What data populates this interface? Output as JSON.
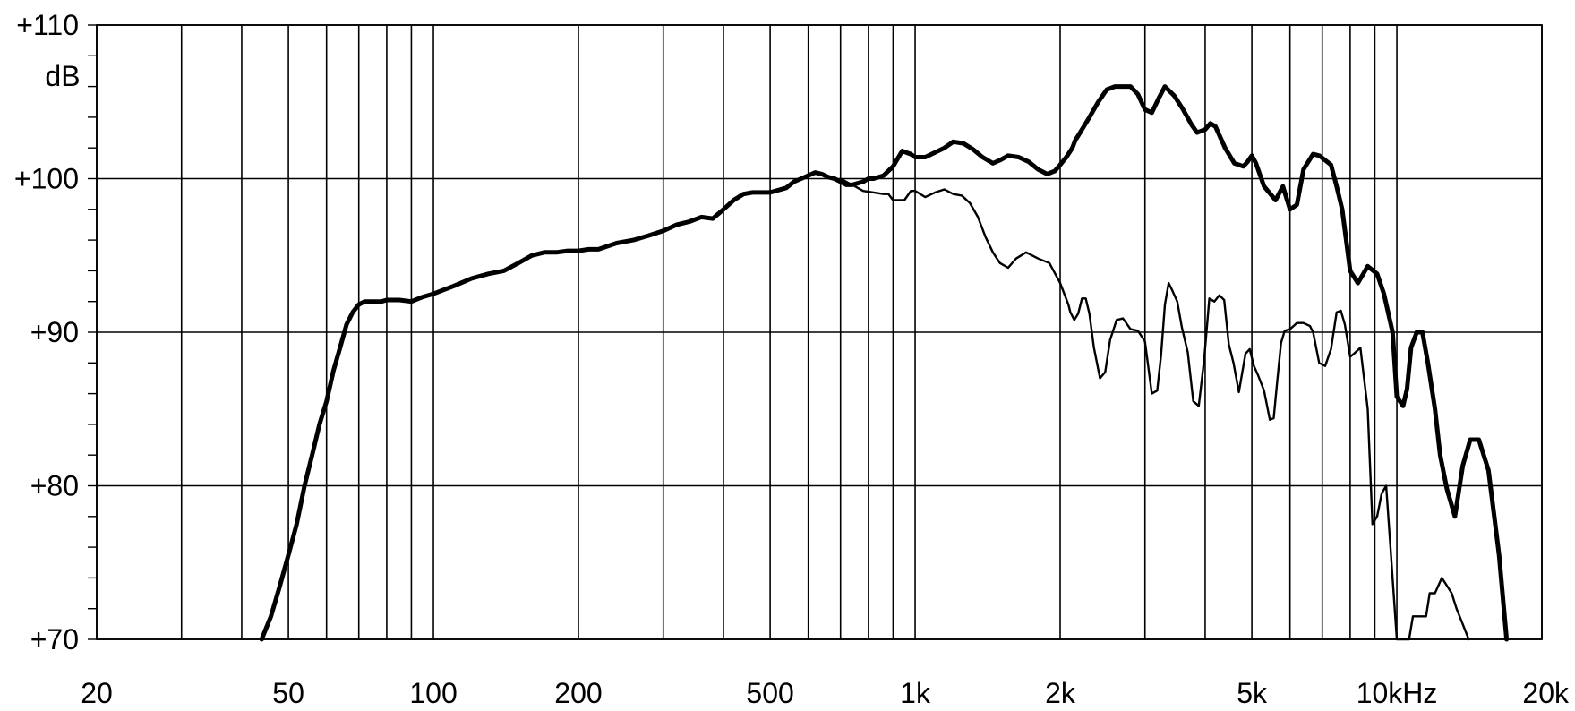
{
  "chart_data": {
    "type": "line",
    "title": "",
    "xlabel": "",
    "ylabel": "dB",
    "x_scale": "log",
    "xlim": [
      20,
      20000
    ],
    "ylim": [
      70,
      110
    ],
    "grid": true,
    "y_ticks": [
      {
        "value": 110,
        "label": "+110"
      },
      {
        "value": 100,
        "label": "+100"
      },
      {
        "value": 90,
        "label": "+90"
      },
      {
        "value": 80,
        "label": "+80"
      },
      {
        "value": 70,
        "label": "+70"
      }
    ],
    "x_ticks": [
      {
        "value": 20,
        "label": "20"
      },
      {
        "value": 50,
        "label": "50"
      },
      {
        "value": 100,
        "label": "100"
      },
      {
        "value": 200,
        "label": "200"
      },
      {
        "value": 500,
        "label": "500"
      },
      {
        "value": 1000,
        "label": "1k"
      },
      {
        "value": 2000,
        "label": "2k"
      },
      {
        "value": 5000,
        "label": "5k"
      },
      {
        "value": 10000,
        "label": "10kHz"
      },
      {
        "value": 20000,
        "label": "20k"
      }
    ],
    "x_gridlines": [
      20,
      30,
      40,
      50,
      60,
      70,
      80,
      90,
      100,
      200,
      300,
      400,
      500,
      600,
      700,
      800,
      900,
      1000,
      2000,
      3000,
      4000,
      5000,
      6000,
      7000,
      8000,
      9000,
      10000,
      20000
    ],
    "series": [
      {
        "style": "thick",
        "x": [
          44,
          46,
          48,
          50,
          52,
          54,
          56,
          58,
          60,
          62,
          64,
          66,
          68,
          70,
          72,
          74,
          76,
          78,
          80,
          85,
          90,
          95,
          100,
          110,
          120,
          130,
          140,
          150,
          160,
          170,
          180,
          190,
          200,
          210,
          220,
          240,
          260,
          280,
          300,
          320,
          340,
          360,
          380,
          400,
          420,
          440,
          460,
          480,
          500,
          540,
          560,
          580,
          600,
          620,
          640,
          660,
          680,
          700,
          720,
          740,
          760,
          780,
          800,
          820,
          860,
          900,
          940,
          980,
          1000,
          1050,
          1100,
          1150,
          1200,
          1260,
          1320,
          1380,
          1450,
          1500,
          1560,
          1640,
          1720,
          1800,
          1880,
          1950,
          2000,
          2060,
          2120,
          2150,
          2200,
          2250,
          2300,
          2400,
          2500,
          2600,
          2700,
          2800,
          2900,
          3000,
          3100,
          3200,
          3300,
          3450,
          3600,
          3750,
          3850,
          4000,
          4100,
          4200,
          4400,
          4600,
          4800,
          4900,
          5000,
          5100,
          5300,
          5600,
          5800,
          6000,
          6200,
          6400,
          6700,
          6900,
          7100,
          7300,
          7500,
          7700,
          8000,
          8300,
          8700,
          9100,
          9400,
          9800,
          10000,
          10300,
          10500,
          10700,
          11000,
          11300,
          11600,
          12000,
          12300,
          12700,
          13200,
          13700,
          14200,
          14800,
          15500,
          16300,
          16900
        ],
        "y": [
          70,
          71.5,
          73.5,
          75.5,
          77.5,
          80,
          82,
          84,
          85.5,
          87.5,
          89,
          90.5,
          91.3,
          91.8,
          92,
          92,
          92,
          92,
          92.1,
          92.1,
          92,
          92.3,
          92.5,
          93,
          93.5,
          93.8,
          94,
          94.5,
          95,
          95.2,
          95.2,
          95.3,
          95.3,
          95.4,
          95.4,
          95.8,
          96,
          96.3,
          96.6,
          97,
          97.2,
          97.5,
          97.4,
          98,
          98.6,
          99,
          99.1,
          99.1,
          99.1,
          99.4,
          99.8,
          100,
          100.2,
          100.4,
          100.3,
          100.1,
          100,
          99.8,
          99.6,
          99.6,
          99.7,
          99.8,
          100,
          100,
          100.2,
          100.8,
          101.8,
          101.6,
          101.4,
          101.4,
          101.7,
          102,
          102.4,
          102.3,
          101.9,
          101.4,
          101,
          101.2,
          101.5,
          101.4,
          101.1,
          100.6,
          100.3,
          100.5,
          100.9,
          101.4,
          102,
          102.5,
          103,
          103.5,
          104,
          105,
          105.8,
          106,
          106,
          106,
          105.5,
          104.5,
          104.3,
          105.2,
          106,
          105.4,
          104.5,
          103.5,
          103,
          103.2,
          103.6,
          103.4,
          102,
          101,
          100.8,
          101.1,
          101.5,
          101,
          99.5,
          98.6,
          99.5,
          98,
          98.3,
          100.6,
          101.6,
          101.5,
          101.2,
          100.9,
          99.5,
          98,
          94,
          93.2,
          94.3,
          93.8,
          92.5,
          90,
          85.8,
          85.2,
          86.3,
          89,
          90,
          90,
          88,
          85,
          82,
          79.8,
          78,
          81.3,
          83,
          83,
          81,
          75.5,
          70
        ]
      },
      {
        "style": "thin",
        "x": [
          700,
          750,
          780,
          820,
          860,
          880,
          900,
          950,
          980,
          1000,
          1050,
          1100,
          1150,
          1200,
          1250,
          1300,
          1350,
          1400,
          1450,
          1500,
          1560,
          1620,
          1700,
          1800,
          1900,
          2000,
          2080,
          2100,
          2140,
          2180,
          2220,
          2260,
          2300,
          2350,
          2420,
          2480,
          2540,
          2620,
          2700,
          2800,
          2900,
          3000,
          3100,
          3180,
          3240,
          3300,
          3360,
          3420,
          3500,
          3580,
          3680,
          3780,
          3880,
          3980,
          4080,
          4180,
          4280,
          4380,
          4480,
          4580,
          4700,
          4850,
          4950,
          5050,
          5150,
          5300,
          5450,
          5550,
          5650,
          5750,
          5850,
          6000,
          6200,
          6400,
          6600,
          6700,
          6900,
          7100,
          7300,
          7500,
          7650,
          7800,
          8000,
          8150,
          8400,
          8700,
          8900,
          9100,
          9300,
          9500,
          9700,
          10000,
          10300,
          10600,
          10800,
          11500,
          11700,
          12000,
          12400,
          12700,
          13000,
          13300,
          13700,
          14100
        ],
        "y": [
          100,
          99.5,
          99.2,
          99.1,
          99,
          99,
          98.6,
          98.6,
          99.2,
          99.2,
          98.8,
          99.1,
          99.3,
          99,
          98.9,
          98.4,
          97.5,
          96.2,
          95.2,
          94.5,
          94.2,
          94.8,
          95.2,
          94.8,
          94.5,
          93.2,
          91.8,
          91.3,
          90.8,
          91.2,
          92.2,
          92.2,
          91.2,
          89,
          87,
          87.4,
          89.5,
          90.8,
          90.9,
          90.2,
          90.1,
          89.4,
          86,
          86.2,
          88.5,
          91.8,
          93.2,
          92.7,
          92,
          90.3,
          88.7,
          85.5,
          85.2,
          88.2,
          92.2,
          92,
          92.4,
          92.1,
          89.2,
          88,
          86.1,
          88.6,
          88.9,
          87.8,
          87.2,
          86.2,
          84.3,
          84.4,
          86.9,
          89.3,
          90.1,
          90.2,
          90.6,
          90.6,
          90.4,
          90,
          88,
          87.8,
          88.9,
          91.3,
          91.4,
          90.5,
          88.4,
          88.6,
          89,
          85,
          77.5,
          78,
          79.5,
          80,
          76,
          70,
          70,
          70,
          71.5,
          71.5,
          73,
          73,
          74,
          73.5,
          73,
          72,
          71,
          70
        ]
      }
    ]
  }
}
